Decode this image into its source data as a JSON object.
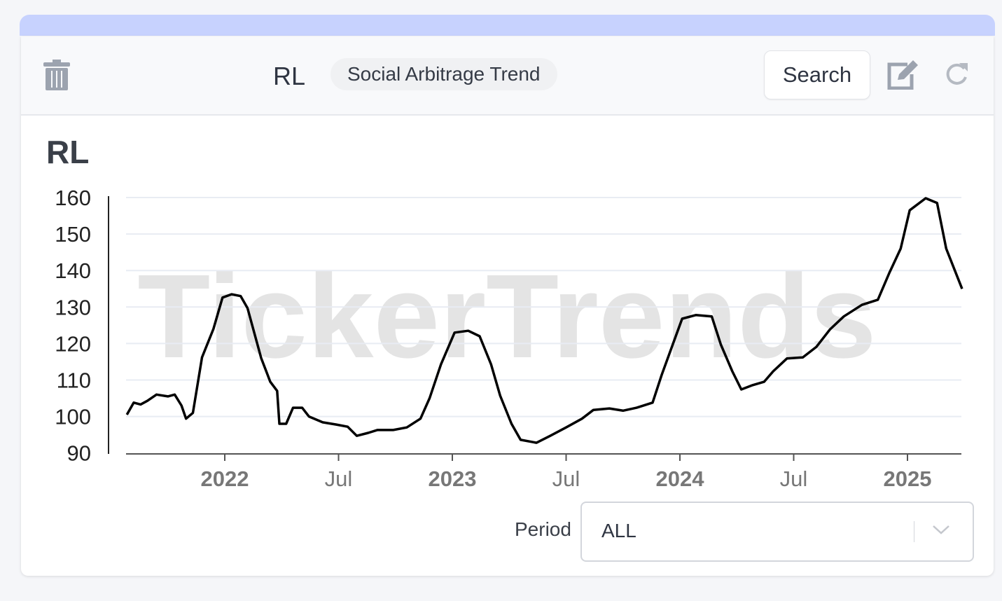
{
  "header": {
    "ticker": "RL",
    "badge": "Social Arbitrage Trend",
    "search_label": "Search"
  },
  "icons": {
    "delete": "trash-icon",
    "edit": "edit-icon",
    "refresh": "refresh-icon",
    "dropdown": "chevron-down-icon"
  },
  "colors": {
    "topbar": "#c7d2fe",
    "line": "#000000",
    "watermark": "#e4e4e4"
  },
  "period": {
    "label": "Period",
    "value": "ALL"
  },
  "chart_data": {
    "type": "line",
    "title": "RL",
    "watermark": "TickerTrends",
    "xlabel": "",
    "ylabel": "",
    "ylim": [
      90,
      160
    ],
    "xlim": [
      2021.57,
      2025.24
    ],
    "yticks": [
      90,
      100,
      110,
      120,
      130,
      140,
      150,
      160
    ],
    "xticks": [
      {
        "v": 2022,
        "label": "2022",
        "major": true
      },
      {
        "v": 2022.5,
        "label": "Jul",
        "major": false
      },
      {
        "v": 2023,
        "label": "2023",
        "major": true
      },
      {
        "v": 2023.5,
        "label": "Jul",
        "major": false
      },
      {
        "v": 2024,
        "label": "2024",
        "major": true
      },
      {
        "v": 2024.5,
        "label": "Jul",
        "major": false
      },
      {
        "v": 2025,
        "label": "2025",
        "major": true
      }
    ],
    "grid": true,
    "series": [
      {
        "name": "RL",
        "x": [
          2021.57,
          2021.6,
          2021.63,
          2021.66,
          2021.7,
          2021.75,
          2021.78,
          2021.81,
          2021.83,
          2021.86,
          2021.9,
          2021.95,
          2021.99,
          2022.03,
          2022.07,
          2022.1,
          2022.16,
          2022.2,
          2022.23,
          2022.24,
          2022.27,
          2022.3,
          2022.34,
          2022.37,
          2022.43,
          2022.49,
          2022.54,
          2022.58,
          2022.63,
          2022.67,
          2022.74,
          2022.8,
          2022.86,
          2022.9,
          2022.95,
          2023.01,
          2023.07,
          2023.12,
          2023.17,
          2023.21,
          2023.26,
          2023.3,
          2023.37,
          2023.43,
          2023.5,
          2023.57,
          2023.62,
          2023.69,
          2023.75,
          2023.81,
          2023.88,
          2023.92,
          2023.97,
          2024.01,
          2024.07,
          2024.14,
          2024.18,
          2024.23,
          2024.27,
          2024.32,
          2024.37,
          2024.41,
          2024.47,
          2024.54,
          2024.6,
          2024.66,
          2024.72,
          2024.8,
          2024.87,
          2024.92,
          2024.97,
          2025.01,
          2025.08,
          2025.13,
          2025.17,
          2025.24
        ],
        "y": [
          100.5,
          103.8,
          103.3,
          104.3,
          106,
          105.5,
          106,
          103,
          99.4,
          101,
          116.2,
          124,
          132.6,
          133.5,
          133,
          129.7,
          116,
          109.5,
          107,
          98,
          98,
          102.4,
          102.4,
          100,
          98.4,
          97.8,
          97.2,
          94.7,
          95.5,
          96.3,
          96.3,
          97,
          99.4,
          105,
          114.3,
          123,
          123.5,
          122,
          114.3,
          105.7,
          98,
          93.6,
          92.8,
          94.7,
          97,
          99.4,
          101.8,
          102.2,
          101.6,
          102.4,
          103.8,
          111.4,
          120,
          126.8,
          127.8,
          127.4,
          119.7,
          112.4,
          107.4,
          108.6,
          109.5,
          112.4,
          115.9,
          116.2,
          119.1,
          123.9,
          127.4,
          130.6,
          132,
          139.3,
          146,
          156.5,
          159.8,
          158.5,
          146,
          135
        ]
      }
    ]
  }
}
